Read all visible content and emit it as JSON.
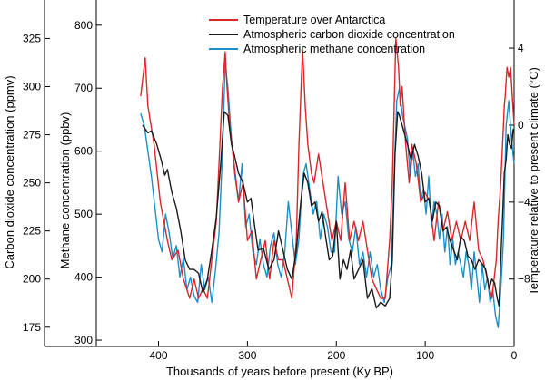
{
  "chart_data": {
    "type": "line",
    "xlabel": "Thousands of years before present (Ky BP)",
    "xlim": [
      470,
      0
    ],
    "x_ticks": [
      400,
      300,
      200,
      100,
      0
    ],
    "axes": {
      "co2": {
        "label": "Carbon dioxide concentration (ppmv)",
        "ylim": [
          165,
          345
        ],
        "ticks": [
          175,
          200,
          225,
          250,
          275,
          300,
          325
        ]
      },
      "methane": {
        "label": "Methane concentration (ppbv)",
        "ylim": [
          290,
          840
        ],
        "ticks": [
          300,
          400,
          500,
          600,
          700,
          800
        ]
      },
      "temperature": {
        "label": "Temperature relative to present climate (°C)",
        "ylim": [
          -11.5,
          6.5
        ],
        "ticks": [
          4,
          0,
          -4,
          -8
        ],
        "tick_labels": [
          "4",
          "0",
          "−4",
          "−8"
        ]
      }
    },
    "legend": {
      "position": "top",
      "entries": [
        {
          "name": "Temperature over Antarctica",
          "color": "#d9262b"
        },
        {
          "name": "Atmospheric carbon dioxide concentration",
          "color": "#1a1a1a"
        },
        {
          "name": "Atmospheric methane concentration",
          "color": "#1b8fc6"
        }
      ]
    },
    "series": [
      {
        "name": "Temperature over Antarctica",
        "axis": "temperature",
        "color": "#d9262b",
        "x": [
          420,
          415,
          412,
          405,
          398,
          390,
          385,
          378,
          372,
          365,
          360,
          355,
          350,
          345,
          340,
          335,
          332,
          328,
          325,
          323,
          320,
          315,
          310,
          305,
          300,
          295,
          290,
          285,
          280,
          275,
          270,
          265,
          260,
          255,
          250,
          245,
          242,
          238,
          235,
          232,
          228,
          225,
          220,
          215,
          210,
          205,
          200,
          195,
          190,
          185,
          180,
          175,
          170,
          160,
          150,
          145,
          140,
          137,
          133,
          130,
          128,
          126,
          122,
          118,
          115,
          110,
          105,
          100,
          95,
          90,
          85,
          80,
          75,
          70,
          65,
          60,
          55,
          50,
          45,
          40,
          35,
          30,
          25,
          20,
          18,
          15,
          12,
          11,
          10,
          8,
          6,
          4,
          2,
          0
        ],
        "y": [
          1.5,
          3.5,
          1,
          -1,
          -4,
          -6,
          -7,
          -6.5,
          -8,
          -9,
          -8,
          -9,
          -8.5,
          -9,
          -7,
          -5,
          -2,
          2,
          3.8,
          2,
          0,
          -2,
          -4,
          -3,
          -6,
          -5.5,
          -8,
          -7,
          -6,
          -8,
          -6,
          -7,
          -7,
          -8,
          -9,
          -6,
          -1,
          4,
          1,
          -1,
          -2.5,
          -3,
          -1.5,
          -3,
          -4.5,
          -6,
          -5,
          -6,
          -3,
          -6,
          -5,
          -6,
          -5,
          -8,
          -9,
          -9,
          -6,
          -3,
          4.5,
          3,
          1,
          2,
          -1,
          -3,
          -1,
          -2,
          -4,
          -3.5,
          -4,
          -6,
          -4,
          -5.5,
          -4.5,
          -6,
          -5,
          -6,
          -5,
          -6,
          -4,
          -6.5,
          -7,
          -8,
          -9,
          -7,
          -5,
          -3,
          0,
          1,
          1.5,
          3,
          2.5,
          3,
          1.5,
          0
        ]
      },
      {
        "name": "Atmospheric carbon dioxide concentration",
        "axis": "co2",
        "color": "#1a1a1a",
        "x": [
          418,
          412,
          408,
          402,
          397,
          393,
          390,
          385,
          380,
          375,
          370,
          365,
          360,
          355,
          350,
          345,
          340,
          335,
          330,
          326,
          322,
          318,
          315,
          310,
          305,
          300,
          296,
          292,
          288,
          282,
          276,
          270,
          265,
          260,
          255,
          250,
          245,
          240,
          236,
          232,
          228,
          224,
          220,
          216,
          212,
          208,
          204,
          200,
          196,
          192,
          188,
          184,
          180,
          175,
          170,
          165,
          160,
          155,
          150,
          145,
          140,
          137,
          134,
          131,
          129,
          126,
          123,
          120,
          116,
          112,
          108,
          104,
          100,
          96,
          92,
          88,
          84,
          80,
          76,
          72,
          68,
          64,
          60,
          56,
          52,
          48,
          44,
          40,
          36,
          32,
          28,
          25,
          22,
          19,
          17,
          15,
          13,
          11,
          9,
          7,
          5,
          3,
          1
        ],
        "y": [
          280,
          276,
          277,
          270,
          262,
          254,
          257,
          245,
          237,
          225,
          210,
          205,
          205,
          203,
          193,
          200,
          215,
          232,
          260,
          287,
          285,
          270,
          265,
          255,
          250,
          240,
          242,
          228,
          215,
          216,
          205,
          210,
          225,
          215,
          205,
          200,
          215,
          240,
          255,
          250,
          238,
          240,
          230,
          235,
          222,
          210,
          212,
          230,
          200,
          210,
          205,
          215,
          200,
          205,
          210,
          190,
          195,
          185,
          188,
          186,
          190,
          210,
          265,
          287,
          285,
          280,
          275,
          270,
          262,
          270,
          264,
          255,
          240,
          242,
          230,
          240,
          238,
          225,
          227,
          220,
          215,
          210,
          222,
          220,
          212,
          210,
          205,
          210,
          208,
          205,
          195,
          200,
          198,
          190,
          186,
          210,
          232,
          255,
          262,
          275,
          270,
          268,
          278
        ]
      },
      {
        "name": "Atmospheric methane concentration",
        "axis": "methane",
        "color": "#1b8fc6",
        "x": [
          420,
          416,
          412,
          408,
          404,
          400,
          396,
          392,
          388,
          384,
          380,
          376,
          372,
          368,
          364,
          360,
          356,
          352,
          348,
          344,
          340,
          336,
          332,
          328,
          325,
          322,
          318,
          314,
          310,
          306,
          302,
          298,
          294,
          290,
          286,
          282,
          278,
          274,
          270,
          266,
          262,
          258,
          254,
          250,
          246,
          242,
          238,
          234,
          230,
          226,
          222,
          218,
          214,
          210,
          206,
          202,
          198,
          194,
          190,
          186,
          182,
          178,
          174,
          170,
          166,
          162,
          158,
          154,
          150,
          146,
          142,
          138,
          135,
          132,
          129,
          126,
          123,
          120,
          117,
          114,
          111,
          108,
          105,
          102,
          99,
          96,
          93,
          90,
          87,
          84,
          81,
          78,
          75,
          72,
          69,
          66,
          63,
          60,
          57,
          54,
          51,
          48,
          45,
          42,
          39,
          36,
          33,
          30,
          27,
          24,
          21,
          18,
          15,
          12,
          9,
          6,
          3,
          0
        ],
        "y": [
          660,
          640,
          600,
          560,
          510,
          460,
          440,
          500,
          470,
          430,
          450,
          400,
          430,
          380,
          400,
          370,
          360,
          420,
          380,
          400,
          360,
          410,
          470,
          600,
          740,
          700,
          620,
          560,
          520,
          580,
          480,
          500,
          440,
          420,
          460,
          420,
          400,
          450,
          470,
          420,
          400,
          440,
          520,
          470,
          420,
          460,
          560,
          580,
          540,
          500,
          520,
          460,
          500,
          480,
          440,
          440,
          560,
          500,
          520,
          460,
          440,
          480,
          420,
          440,
          400,
          440,
          400,
          420,
          380,
          360,
          400,
          420,
          560,
          680,
          700,
          660,
          640,
          620,
          560,
          600,
          560,
          580,
          520,
          540,
          500,
          560,
          480,
          520,
          500,
          460,
          500,
          440,
          480,
          420,
          460,
          420,
          440,
          420,
          400,
          440,
          420,
          380,
          440,
          400,
          360,
          420,
          380,
          400,
          360,
          380,
          340,
          320,
          380,
          460,
          640,
          680,
          620,
          580
        ]
      }
    ]
  }
}
